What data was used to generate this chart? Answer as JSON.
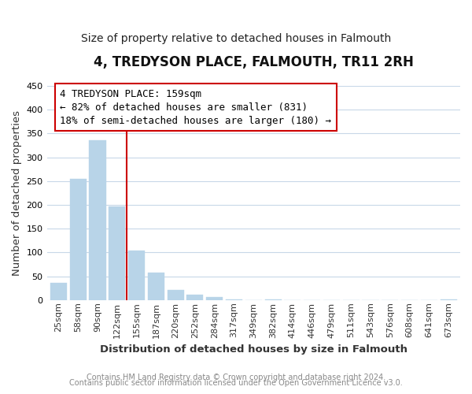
{
  "title": "4, TREDYSON PLACE, FALMOUTH, TR11 2RH",
  "subtitle": "Size of property relative to detached houses in Falmouth",
  "xlabel": "Distribution of detached houses by size in Falmouth",
  "ylabel": "Number of detached properties",
  "bar_labels": [
    "25sqm",
    "58sqm",
    "90sqm",
    "122sqm",
    "155sqm",
    "187sqm",
    "220sqm",
    "252sqm",
    "284sqm",
    "317sqm",
    "349sqm",
    "382sqm",
    "414sqm",
    "446sqm",
    "479sqm",
    "511sqm",
    "543sqm",
    "576sqm",
    "608sqm",
    "641sqm",
    "673sqm"
  ],
  "bar_values": [
    36,
    255,
    336,
    197,
    104,
    57,
    21,
    11,
    6,
    2,
    0,
    1,
    0,
    0,
    0,
    0,
    0,
    0,
    0,
    0,
    2
  ],
  "bar_color": "#b8d4e8",
  "bar_edge_color": "#b8d4e8",
  "vline_index": 4,
  "vline_color": "#cc0000",
  "annotation_line1": "4 TREDYSON PLACE: 159sqm",
  "annotation_line2": "← 82% of detached houses are smaller (831)",
  "annotation_line3": "18% of semi-detached houses are larger (180) →",
  "annotation_box_facecolor": "#ffffff",
  "annotation_box_edgecolor": "#cc0000",
  "ylim": [
    0,
    450
  ],
  "yticks": [
    0,
    50,
    100,
    150,
    200,
    250,
    300,
    350,
    400,
    450
  ],
  "footer1": "Contains HM Land Registry data © Crown copyright and database right 2024.",
  "footer2": "Contains public sector information licensed under the Open Government Licence v3.0.",
  "bg_color": "#ffffff",
  "grid_color": "#c8d8e8",
  "title_fontsize": 12,
  "subtitle_fontsize": 10,
  "axis_label_fontsize": 9.5,
  "tick_fontsize": 8,
  "annotation_fontsize": 9,
  "footer_fontsize": 7
}
